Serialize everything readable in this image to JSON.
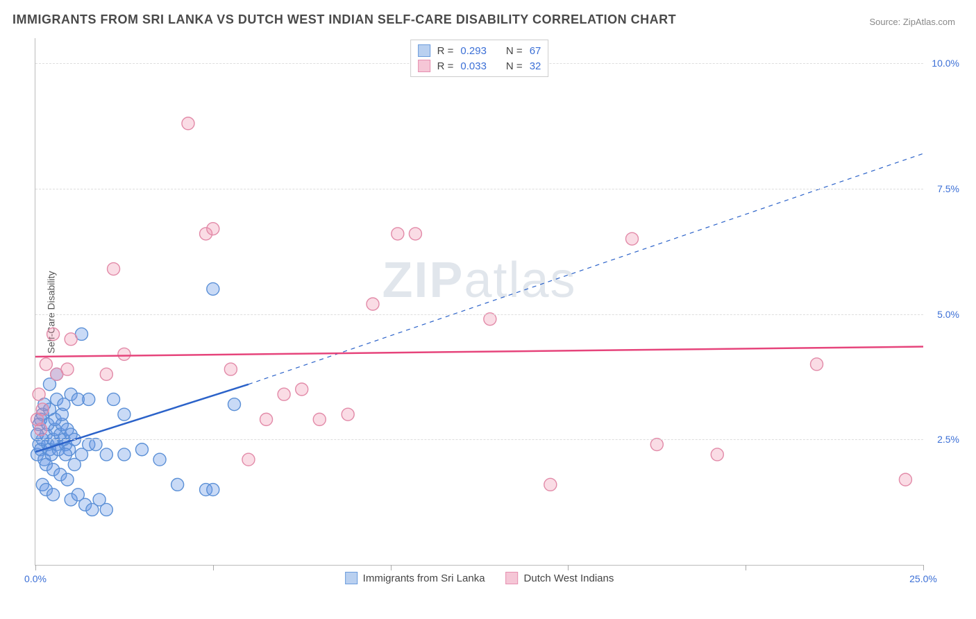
{
  "title": "IMMIGRANTS FROM SRI LANKA VS DUTCH WEST INDIAN SELF-CARE DISABILITY CORRELATION CHART",
  "source_label": "Source: ",
  "source_name": "ZipAtlas.com",
  "ylabel": "Self-Care Disability",
  "watermark_a": "ZIP",
  "watermark_b": "atlas",
  "chart": {
    "type": "scatter",
    "background_color": "#ffffff",
    "grid_color": "#dddddd",
    "axis_color": "#bbbbbb",
    "tick_label_color": "#3b6fd6",
    "xlim": [
      0,
      25
    ],
    "ylim": [
      0,
      10.5
    ],
    "x_ticks": [
      0,
      5,
      10,
      15,
      20,
      25
    ],
    "x_tick_labels": [
      "0.0%",
      "",
      "",
      "",
      "",
      "25.0%"
    ],
    "y_ticks": [
      2.5,
      5.0,
      7.5,
      10.0
    ],
    "y_tick_labels": [
      "2.5%",
      "5.0%",
      "7.5%",
      "10.0%"
    ],
    "marker_radius": 9,
    "marker_stroke_width": 1.4,
    "trend_solid_width": 2.5,
    "trend_dash_width": 1.2,
    "series": [
      {
        "id": "sri_lanka",
        "label": "Immigrants from Sri Lanka",
        "color_fill": "rgba(100,150,230,0.35)",
        "color_stroke": "#5a8fd6",
        "swatch_fill": "#b9d0f0",
        "swatch_stroke": "#6a9bdc",
        "R": "0.293",
        "N": "67",
        "trend": {
          "color": "#2b62c9",
          "solid_to_x": 6.0,
          "y_at_0": 2.25,
          "y_at_solid_end": 3.6,
          "y_at_25": 8.2
        },
        "points": [
          [
            0.05,
            2.2
          ],
          [
            0.1,
            2.4
          ],
          [
            0.15,
            2.3
          ],
          [
            0.2,
            2.5
          ],
          [
            0.25,
            2.1
          ],
          [
            0.3,
            2.6
          ],
          [
            0.35,
            2.4
          ],
          [
            0.4,
            2.3
          ],
          [
            0.45,
            2.2
          ],
          [
            0.5,
            2.5
          ],
          [
            0.55,
            2.7
          ],
          [
            0.6,
            2.4
          ],
          [
            0.65,
            2.3
          ],
          [
            0.7,
            2.6
          ],
          [
            0.75,
            2.8
          ],
          [
            0.8,
            2.5
          ],
          [
            0.85,
            2.4
          ],
          [
            0.9,
            2.7
          ],
          [
            0.95,
            2.3
          ],
          [
            1.0,
            2.6
          ],
          [
            0.2,
            3.0
          ],
          [
            0.4,
            3.1
          ],
          [
            0.6,
            3.3
          ],
          [
            0.8,
            3.2
          ],
          [
            1.0,
            3.4
          ],
          [
            1.2,
            3.3
          ],
          [
            0.3,
            2.0
          ],
          [
            0.5,
            1.9
          ],
          [
            0.7,
            1.8
          ],
          [
            0.9,
            1.7
          ],
          [
            1.1,
            2.0
          ],
          [
            1.3,
            2.2
          ],
          [
            1.5,
            2.4
          ],
          [
            1.0,
            1.3
          ],
          [
            1.2,
            1.4
          ],
          [
            1.4,
            1.2
          ],
          [
            1.6,
            1.1
          ],
          [
            1.8,
            1.3
          ],
          [
            2.0,
            1.1
          ],
          [
            2.5,
            2.2
          ],
          [
            0.4,
            3.6
          ],
          [
            0.6,
            3.8
          ],
          [
            1.3,
            4.6
          ],
          [
            1.5,
            3.3
          ],
          [
            2.2,
            3.3
          ],
          [
            2.5,
            3.0
          ],
          [
            3.0,
            2.3
          ],
          [
            3.5,
            2.1
          ],
          [
            4.0,
            1.6
          ],
          [
            4.8,
            1.5
          ],
          [
            5.0,
            1.5
          ],
          [
            5.0,
            5.5
          ],
          [
            5.6,
            3.2
          ],
          [
            0.2,
            1.6
          ],
          [
            0.3,
            1.5
          ],
          [
            0.5,
            1.4
          ],
          [
            0.15,
            2.9
          ],
          [
            0.25,
            3.2
          ],
          [
            0.1,
            2.8
          ],
          [
            0.05,
            2.6
          ],
          [
            0.35,
            2.8
          ],
          [
            0.55,
            2.9
          ],
          [
            0.75,
            3.0
          ],
          [
            0.85,
            2.2
          ],
          [
            1.1,
            2.5
          ],
          [
            1.7,
            2.4
          ],
          [
            2.0,
            2.2
          ]
        ]
      },
      {
        "id": "dutch_west_indian",
        "label": "Dutch West Indians",
        "color_fill": "rgba(240,140,170,0.3)",
        "color_stroke": "#e28aa8",
        "swatch_fill": "#f5c6d6",
        "swatch_stroke": "#e68fb0",
        "R": "0.033",
        "N": "32",
        "trend": {
          "color": "#e6447b",
          "solid_to_x": 25,
          "y_at_0": 4.15,
          "y_at_solid_end": 4.35,
          "y_at_25": 4.35
        },
        "points": [
          [
            0.05,
            2.9
          ],
          [
            0.1,
            3.4
          ],
          [
            0.3,
            4.0
          ],
          [
            0.5,
            4.6
          ],
          [
            0.6,
            3.8
          ],
          [
            0.9,
            3.9
          ],
          [
            1.0,
            4.5
          ],
          [
            2.0,
            3.8
          ],
          [
            2.2,
            5.9
          ],
          [
            2.5,
            4.2
          ],
          [
            4.3,
            8.8
          ],
          [
            4.8,
            6.6
          ],
          [
            5.0,
            6.7
          ],
          [
            5.5,
            3.9
          ],
          [
            6.0,
            2.1
          ],
          [
            6.5,
            2.9
          ],
          [
            7.0,
            3.4
          ],
          [
            7.5,
            3.5
          ],
          [
            8.0,
            2.9
          ],
          [
            8.8,
            3.0
          ],
          [
            9.5,
            5.2
          ],
          [
            10.2,
            6.6
          ],
          [
            10.7,
            6.6
          ],
          [
            12.8,
            4.9
          ],
          [
            14.5,
            1.6
          ],
          [
            16.8,
            6.5
          ],
          [
            17.5,
            2.4
          ],
          [
            19.2,
            2.2
          ],
          [
            22.0,
            4.0
          ],
          [
            24.5,
            1.7
          ],
          [
            0.2,
            3.1
          ],
          [
            0.15,
            2.7
          ]
        ]
      }
    ],
    "legend_top": {
      "R_prefix": "R = ",
      "N_prefix": "N = "
    }
  }
}
